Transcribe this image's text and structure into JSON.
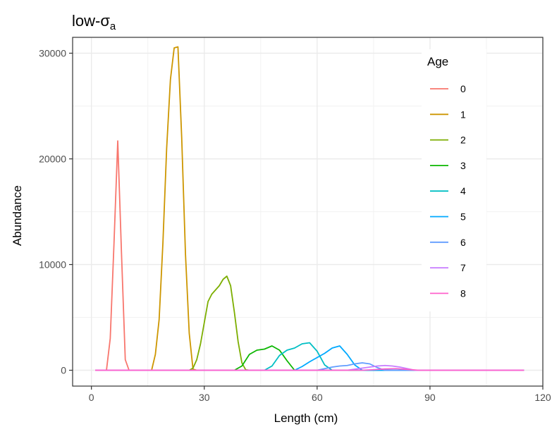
{
  "chart_data": {
    "type": "line",
    "title": "low-σ",
    "title_subscript": "a",
    "xlabel": "Length (cm)",
    "ylabel": "Abundance",
    "xlim": [
      -5,
      120
    ],
    "ylim": [
      -1500,
      31500
    ],
    "x_ticks": [
      0,
      30,
      60,
      90,
      120
    ],
    "x_tick_labels": [
      "0",
      "30",
      "60",
      "90",
      "120"
    ],
    "y_ticks": [
      0,
      10000,
      20000,
      30000
    ],
    "y_tick_labels": [
      "0",
      "10000",
      "20000",
      "30000"
    ],
    "grid": true,
    "legend": {
      "title": "Age",
      "placement": "top-right"
    },
    "series": [
      {
        "name": "0",
        "color": "#F8766D",
        "x": [
          1,
          4,
          5,
          6,
          7,
          8,
          9,
          10,
          11,
          115
        ],
        "y": [
          0,
          0,
          3000,
          12000,
          21700,
          11000,
          1000,
          0,
          0,
          0
        ]
      },
      {
        "name": "1",
        "color": "#CD9600",
        "x": [
          1,
          16,
          17,
          18,
          19,
          20,
          21,
          22,
          23,
          24,
          25,
          26,
          27,
          28,
          115
        ],
        "y": [
          0,
          0,
          1500,
          4800,
          12000,
          21000,
          27500,
          30500,
          30600,
          22000,
          11000,
          3500,
          100,
          0,
          0
        ]
      },
      {
        "name": "2",
        "color": "#7CAE00",
        "x": [
          1,
          26,
          27,
          28,
          29,
          30,
          31,
          32,
          33,
          34,
          35,
          36,
          37,
          38,
          39,
          40,
          41,
          42,
          115
        ],
        "y": [
          0,
          0,
          200,
          1000,
          2500,
          4500,
          6500,
          7200,
          7600,
          8000,
          8600,
          8900,
          8000,
          5500,
          2700,
          700,
          50,
          0,
          0
        ]
      },
      {
        "name": "3",
        "color": "#0CB702",
        "x": [
          1,
          38,
          40,
          42,
          44,
          46,
          48,
          50,
          52,
          54,
          115
        ],
        "y": [
          0,
          0,
          400,
          1500,
          1900,
          2000,
          2300,
          1900,
          900,
          0,
          0
        ]
      },
      {
        "name": "4",
        "color": "#00BFC4",
        "x": [
          1,
          46,
          48,
          50,
          52,
          54,
          56,
          58,
          60,
          62,
          64,
          115
        ],
        "y": [
          0,
          0,
          400,
          1400,
          1900,
          2100,
          2500,
          2600,
          1800,
          500,
          0,
          0
        ]
      },
      {
        "name": "5",
        "color": "#00A9FF",
        "x": [
          1,
          54,
          56,
          58,
          60,
          62,
          64,
          66,
          68,
          70,
          72,
          115
        ],
        "y": [
          0,
          0,
          350,
          800,
          1200,
          1600,
          2100,
          2300,
          1500,
          500,
          0,
          0
        ]
      },
      {
        "name": "6",
        "color": "#619CFF",
        "x": [
          1,
          60,
          62,
          64,
          66,
          68,
          70,
          72,
          74,
          76,
          78,
          115
        ],
        "y": [
          0,
          0,
          150,
          300,
          400,
          450,
          600,
          700,
          600,
          250,
          0,
          0
        ]
      },
      {
        "name": "7",
        "color": "#C77CFF",
        "x": [
          1,
          68,
          70,
          72,
          74,
          76,
          78,
          80,
          82,
          84,
          86,
          115
        ],
        "y": [
          0,
          0,
          100,
          200,
          300,
          400,
          450,
          400,
          300,
          150,
          0,
          0
        ]
      },
      {
        "name": "8",
        "color": "#FF61CC",
        "x": [
          1,
          72,
          75,
          78,
          81,
          84,
          87,
          115
        ],
        "y": [
          0,
          0,
          50,
          120,
          150,
          80,
          0,
          0
        ]
      }
    ]
  }
}
